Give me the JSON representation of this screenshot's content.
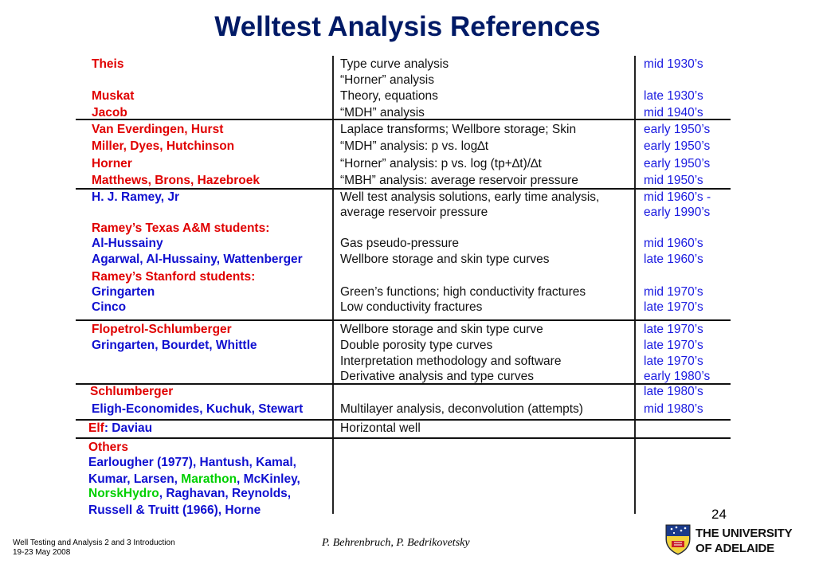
{
  "title": "Welltest Analysis References",
  "rows": [
    {
      "author_parts": [
        {
          "text": "Theis",
          "color": "red"
        }
      ],
      "topic": "Type curve analysis",
      "date": "mid 1930’s"
    },
    {
      "author_parts": [],
      "topic": "“Horner” analysis",
      "date": ""
    },
    {
      "author_parts": [
        {
          "text": "Muskat",
          "color": "red"
        }
      ],
      "topic": "Theory, equations",
      "date": "late 1930’s"
    },
    {
      "author_parts": [
        {
          "text": "Jacob",
          "color": "red"
        }
      ],
      "topic": "“MDH” analysis",
      "date": "mid 1940’s"
    },
    {
      "author_parts": [
        {
          "text": "Van Everdingen, Hurst",
          "color": "red"
        }
      ],
      "topic": "Laplace transforms; Wellbore storage; Skin",
      "date": "early 1950’s"
    },
    {
      "author_parts": [
        {
          "text": "Miller, Dyes, Hutchinson",
          "color": "red"
        }
      ],
      "topic": "“MDH” analysis: p vs. log∆t",
      "date": "early 1950’s"
    },
    {
      "author_parts": [
        {
          "text": "Horner",
          "color": "red"
        }
      ],
      "topic": "“Horner” analysis: p vs. log (tp+∆t)/∆t",
      "date": "early 1950’s"
    },
    {
      "author_parts": [
        {
          "text": "Matthews, Brons, Hazebroek",
          "color": "red"
        }
      ],
      "topic": "“MBH” analysis: average reservoir pressure",
      "date": "mid 1950’s"
    },
    {
      "author_parts": [
        {
          "text": "H. J. Ramey, Jr",
          "color": "blue"
        }
      ],
      "topic": "Well test analysis solutions, early time analysis,",
      "date": "mid 1960’s -"
    },
    {
      "author_parts": [],
      "topic": "average reservoir pressure",
      "date": "early 1990’s"
    },
    {
      "author_parts": [
        {
          "text": "Ramey’s Texas A&M students:",
          "color": "red"
        }
      ],
      "topic": "",
      "date": ""
    },
    {
      "author_parts": [
        {
          "text": "Al-Hussainy",
          "color": "blue"
        }
      ],
      "topic": "Gas pseudo-pressure",
      "date": "mid 1960’s"
    },
    {
      "author_parts": [
        {
          "text": "Agarwal, Al-Hussainy, Wattenberger",
          "color": "blue"
        }
      ],
      "topic": "Wellbore storage and skin type curves",
      "date": "late 1960’s"
    },
    {
      "author_parts": [
        {
          "text": "Ramey’s Stanford students:",
          "color": "red"
        }
      ],
      "topic": "",
      "date": ""
    },
    {
      "author_parts": [
        {
          "text": "Gringarten",
          "color": "blue"
        }
      ],
      "topic": "Green’s functions; high conductivity fractures",
      "date": "mid 1970’s"
    },
    {
      "author_parts": [
        {
          "text": "Cinco",
          "color": "blue"
        }
      ],
      "topic": "Low conductivity fractures",
      "date": "late 1970’s"
    },
    {
      "author_parts": [
        {
          "text": "Flopetrol-Schlumberger",
          "color": "red"
        }
      ],
      "topic": "Wellbore storage and skin type curve",
      "date": "late 1970’s"
    },
    {
      "author_parts": [
        {
          "text": "Gringarten, Bourdet, Whittle",
          "color": "blue"
        }
      ],
      "topic": "Double porosity type curves",
      "date": "late 1970’s"
    },
    {
      "author_parts": [],
      "topic": "Interpretation methodology and software",
      "date": "late 1970’s"
    },
    {
      "author_parts": [],
      "topic": "Derivative analysis and type curves",
      "date": "early 1980’s"
    },
    {
      "author_parts": [
        {
          "text": "Schlumberger",
          "color": "red"
        }
      ],
      "topic": "",
      "date": "late 1980’s"
    },
    {
      "author_parts": [
        {
          "text": "Eligh-Economides, Kuchuk, Stewart",
          "color": "blue"
        }
      ],
      "topic": "Multilayer analysis, deconvolution (attempts)",
      "date": "mid 1980’s"
    },
    {
      "author_parts": [
        {
          "text": "Elf",
          "color": "red"
        },
        {
          "text": ": Daviau",
          "color": "blue"
        }
      ],
      "topic": "Horizontal well",
      "date": ""
    },
    {
      "author_parts": [
        {
          "text": "Others",
          "color": "red"
        }
      ],
      "topic": "",
      "date": ""
    },
    {
      "author_parts": [
        {
          "text": "Earlougher (1977)",
          "color": "blue"
        },
        {
          "text": ", Hantush, Kamal,",
          "color": "blue"
        }
      ],
      "topic": "",
      "date": ""
    },
    {
      "author_parts": [
        {
          "text": "Kumar, Larsen, ",
          "color": "blue"
        },
        {
          "text": "Marathon",
          "color": "green"
        },
        {
          "text": ", McKinley,",
          "color": "blue"
        }
      ],
      "topic": "",
      "date": ""
    },
    {
      "author_parts": [
        {
          "text": "NorskHydro",
          "color": "green"
        },
        {
          "text": ", Raghavan, Reynolds,",
          "color": "blue"
        }
      ],
      "topic": "",
      "date": ""
    },
    {
      "author_parts": [
        {
          "text": "Russell & Truitt (1966), Horne",
          "color": "blue"
        }
      ],
      "topic": "",
      "date": ""
    }
  ],
  "page_number": "24",
  "footer_left": [
    "Well Testing and Analysis 2 and 3 Introduction",
    "19-23 May 2008"
  ],
  "footer_center": "P. Behrenbruch, P. Bedrikovetsky",
  "logo": {
    "line1": "THE UNIVERSITY",
    "line2": "OF ADELAIDE"
  },
  "colors": {
    "title": "#001a66",
    "red": "#e00000",
    "blue": "#1010d0",
    "green": "#00d000",
    "date": "#1a1ae0"
  }
}
